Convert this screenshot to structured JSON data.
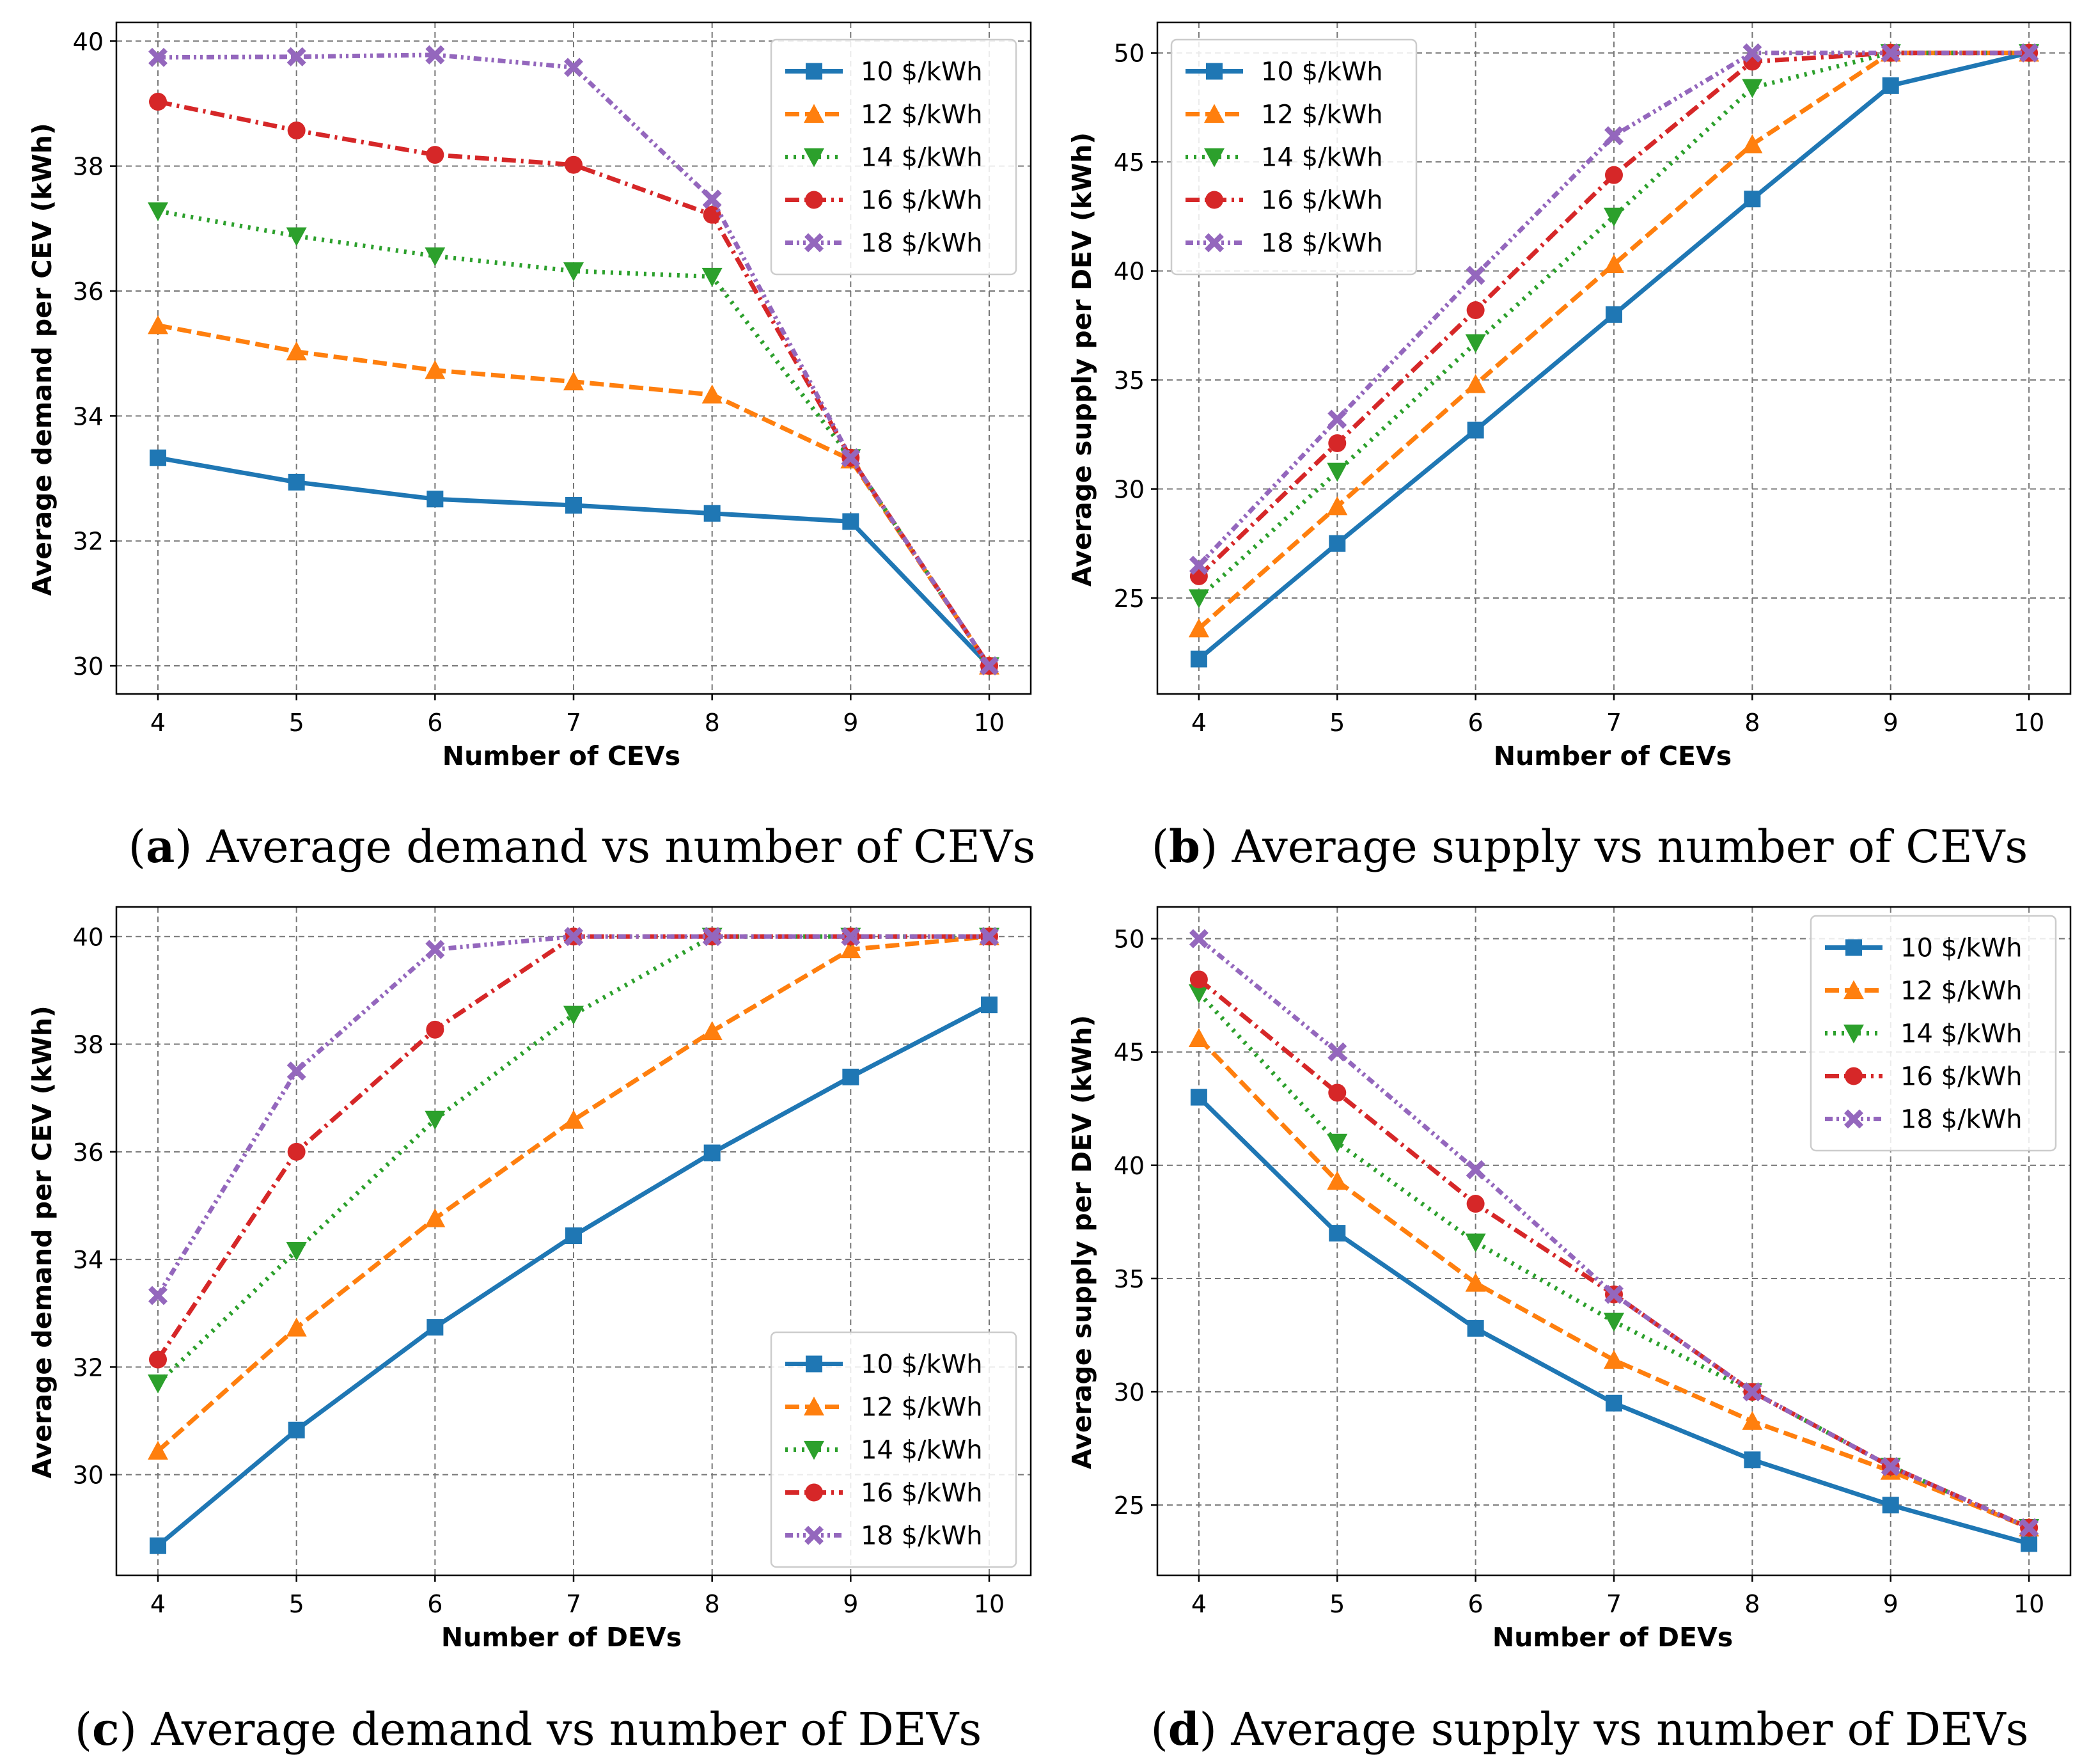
{
  "chart_data": [
    {
      "type": "line",
      "panel": "a",
      "caption_letter": "a",
      "caption_text": "Average demand vs number of CEVs",
      "xlabel": "Number of CEVs",
      "ylabel": "Average demand per CEV (kWh)",
      "x": [
        4,
        5,
        6,
        7,
        8,
        9,
        10
      ],
      "xlim": [
        3.7,
        10.3
      ],
      "ylim": [
        29.55,
        40.3
      ],
      "yticks": [
        30,
        32,
        34,
        36,
        38,
        40
      ],
      "grid": true,
      "legend": "top-right",
      "series": [
        {
          "name": "10 $/kWh",
          "values": [
            33.33,
            32.94,
            32.67,
            32.57,
            32.44,
            32.31,
            30.0
          ]
        },
        {
          "name": "12 $/kWh",
          "values": [
            35.45,
            35.03,
            34.73,
            34.55,
            34.34,
            33.3,
            30.0
          ]
        },
        {
          "name": "14 $/kWh",
          "values": [
            37.28,
            36.88,
            36.56,
            36.32,
            36.23,
            33.33,
            30.0
          ]
        },
        {
          "name": "16 $/kWh",
          "values": [
            39.03,
            38.57,
            38.18,
            38.02,
            37.22,
            33.33,
            30.0
          ]
        },
        {
          "name": "18 $/kWh",
          "values": [
            39.74,
            39.75,
            39.78,
            39.58,
            37.47,
            33.33,
            30.0
          ]
        }
      ]
    },
    {
      "type": "line",
      "panel": "b",
      "caption_letter": "b",
      "caption_text": "Average supply vs number of CEVs",
      "xlabel": "Number of CEVs",
      "ylabel": "Average supply per DEV (kWh)",
      "x": [
        4,
        5,
        6,
        7,
        8,
        9,
        10
      ],
      "xlim": [
        3.7,
        10.3
      ],
      "ylim": [
        20.6,
        51.4
      ],
      "yticks": [
        25,
        30,
        35,
        40,
        45,
        50
      ],
      "grid": true,
      "legend": "top-left",
      "series": [
        {
          "name": "10 $/kWh",
          "values": [
            22.2,
            27.5,
            32.7,
            38.0,
            43.3,
            48.5,
            50.0
          ]
        },
        {
          "name": "12 $/kWh",
          "values": [
            23.6,
            29.2,
            34.8,
            40.3,
            45.8,
            50.0,
            50.0
          ]
        },
        {
          "name": "14 $/kWh",
          "values": [
            25.0,
            30.8,
            36.7,
            42.5,
            48.4,
            50.0,
            50.0
          ]
        },
        {
          "name": "16 $/kWh",
          "values": [
            26.0,
            32.1,
            38.2,
            44.4,
            49.6,
            50.0,
            50.0
          ]
        },
        {
          "name": "18 $/kWh",
          "values": [
            26.5,
            33.2,
            39.8,
            46.2,
            50.0,
            50.0,
            50.0
          ]
        }
      ]
    },
    {
      "type": "line",
      "panel": "c",
      "caption_letter": "c",
      "caption_text": "Average demand vs number of DEVs",
      "xlabel": "Number of DEVs",
      "ylabel": "Average demand per CEV (kWh)",
      "x": [
        4,
        5,
        6,
        7,
        8,
        9,
        10
      ],
      "xlim": [
        3.7,
        10.3
      ],
      "ylim": [
        28.13,
        40.55
      ],
      "yticks": [
        30,
        32,
        34,
        36,
        38,
        40
      ],
      "grid": true,
      "legend": "bottom-right",
      "series": [
        {
          "name": "10 $/kWh",
          "values": [
            28.68,
            30.83,
            32.74,
            34.44,
            35.98,
            37.39,
            38.73
          ]
        },
        {
          "name": "12 $/kWh",
          "values": [
            30.44,
            32.73,
            34.76,
            36.59,
            38.24,
            39.76,
            40.0
          ]
        },
        {
          "name": "14 $/kWh",
          "values": [
            31.7,
            34.16,
            36.6,
            38.55,
            40.0,
            40.0,
            40.0
          ]
        },
        {
          "name": "16 $/kWh",
          "values": [
            32.14,
            36.0,
            38.27,
            40.0,
            40.0,
            40.0,
            40.0
          ]
        },
        {
          "name": "18 $/kWh",
          "values": [
            33.33,
            37.5,
            39.76,
            40.0,
            40.0,
            40.0,
            40.0
          ]
        }
      ]
    },
    {
      "type": "line",
      "panel": "d",
      "caption_letter": "d",
      "caption_text": "Average supply vs number of DEVs",
      "xlabel": "Number of DEVs",
      "ylabel": "Average supply per DEV (kWh)",
      "x": [
        4,
        5,
        6,
        7,
        8,
        9,
        10
      ],
      "xlim": [
        3.7,
        10.3
      ],
      "ylim": [
        21.9,
        51.4
      ],
      "yticks": [
        25,
        30,
        35,
        40,
        45,
        50
      ],
      "grid": true,
      "legend": "top-right",
      "series": [
        {
          "name": "10 $/kWh",
          "values": [
            43.0,
            37.0,
            32.8,
            29.5,
            27.0,
            25.0,
            23.3
          ]
        },
        {
          "name": "12 $/kWh",
          "values": [
            45.6,
            39.3,
            34.8,
            31.4,
            28.7,
            26.5,
            24.0
          ]
        },
        {
          "name": "14 $/kWh",
          "values": [
            47.6,
            41.0,
            36.6,
            33.1,
            30.0,
            26.7,
            24.0
          ]
        },
        {
          "name": "16 $/kWh",
          "values": [
            48.2,
            43.2,
            38.3,
            34.3,
            30.0,
            26.7,
            24.0
          ]
        },
        {
          "name": "18 $/kWh",
          "values": [
            50.0,
            45.0,
            39.8,
            34.3,
            30.0,
            26.7,
            24.0
          ]
        }
      ]
    }
  ],
  "series_styles": [
    {
      "color": "#1f77b4",
      "marker": "square",
      "dash": ""
    },
    {
      "color": "#ff7f0e",
      "marker": "triangle-up",
      "dash": "22 9"
    },
    {
      "color": "#2ca02c",
      "marker": "triangle-down",
      "dash": "4 9"
    },
    {
      "color": "#d62728",
      "marker": "circle",
      "dash": "22 8 4 8"
    },
    {
      "color": "#9467bd",
      "marker": "x-filled",
      "dash": "12 6 4 6 4 6"
    }
  ]
}
